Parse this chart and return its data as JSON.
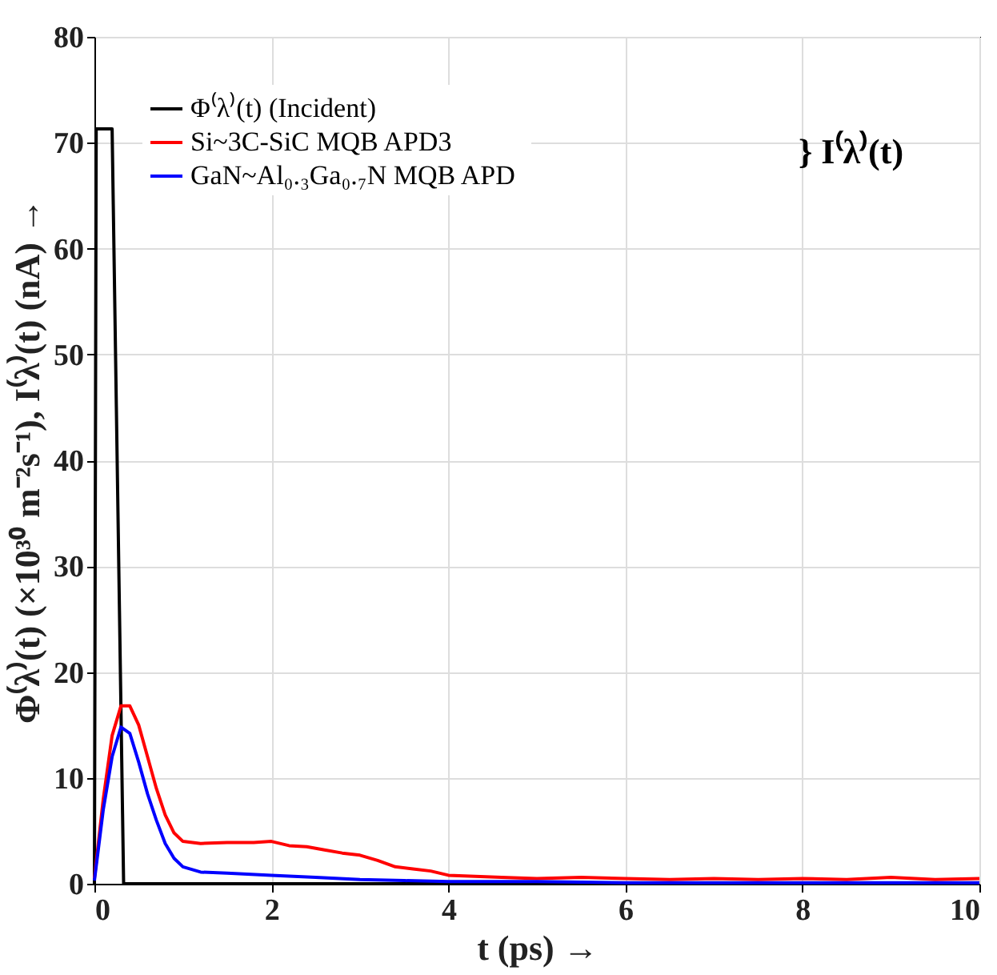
{
  "chart_data": {
    "type": "line",
    "xlabel": "t (ps) →",
    "ylabel": "Φ⁽λ⁾(t) (×10³⁰ m⁻²s⁻¹), I⁽λ⁾(t) (nA) →",
    "xlim": [
      0,
      10
    ],
    "xticks": [
      0,
      2,
      4,
      6,
      8,
      10
    ],
    "ylim": [
      0,
      80
    ],
    "yticks": [
      0,
      10,
      20,
      30,
      40,
      50,
      60,
      70,
      80
    ],
    "grid": true,
    "legend": "top left",
    "line_style": "solid",
    "marker": "none",
    "annotations": [
      "} I⁽λ⁾(t)"
    ],
    "series": [
      {
        "name": "Φ⁽λ⁾(t) (Incident)",
        "color": "#000000",
        "x": [
          0,
          0.02,
          0.2,
          0.33,
          10
        ],
        "values": [
          0,
          71.3,
          71.3,
          0,
          0
        ]
      },
      {
        "name": "Si~3C-SiC  MQB APD3",
        "color": "#ff0000",
        "x": [
          0,
          0.1,
          0.2,
          0.3,
          0.4,
          0.5,
          0.6,
          0.7,
          0.8,
          0.9,
          1.0,
          1.2,
          1.5,
          1.8,
          2.0,
          2.2,
          2.4,
          2.6,
          2.8,
          3.0,
          3.2,
          3.4,
          3.6,
          3.8,
          4.0,
          4.3,
          4.6,
          5.0,
          5.5,
          6.0,
          6.5,
          7.0,
          7.5,
          8.0,
          8.5,
          9.0,
          9.5,
          10
        ],
        "values": [
          0.5,
          8,
          14,
          16.8,
          16.8,
          15,
          12,
          9,
          6.5,
          4.8,
          4,
          3.8,
          3.9,
          3.9,
          4,
          3.6,
          3.5,
          3.2,
          2.9,
          2.7,
          2.2,
          1.6,
          1.4,
          1.2,
          0.8,
          0.7,
          0.6,
          0.5,
          0.6,
          0.5,
          0.4,
          0.5,
          0.4,
          0.5,
          0.4,
          0.6,
          0.4,
          0.5
        ]
      },
      {
        "name": "GaN~Al₀.₃Ga₀.₇N  MQB APD",
        "color": "#0000ff",
        "x": [
          0,
          0.1,
          0.2,
          0.3,
          0.4,
          0.5,
          0.6,
          0.7,
          0.8,
          0.9,
          1.0,
          1.2,
          1.5,
          2.0,
          2.5,
          3.0,
          3.5,
          4.0,
          5.0,
          6.0,
          7.0,
          8.0,
          9.0,
          10
        ],
        "values": [
          0.3,
          7,
          12,
          14.8,
          14.2,
          11.5,
          8.5,
          6,
          3.8,
          2.4,
          1.6,
          1.1,
          1.0,
          0.8,
          0.6,
          0.4,
          0.3,
          0.2,
          0.2,
          0.1,
          0.1,
          0.1,
          0.1,
          0.1
        ]
      }
    ]
  }
}
